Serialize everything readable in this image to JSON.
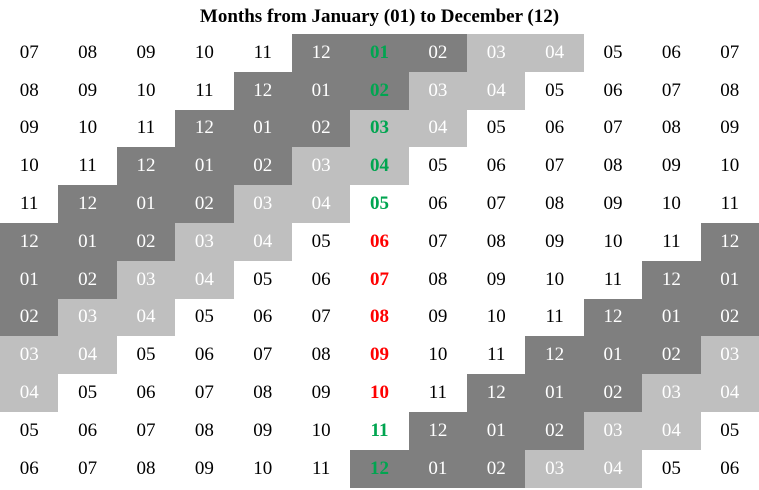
{
  "header": {
    "title": "Months from January (01) to December (12)"
  },
  "table": {
    "rows": [
      [
        "07",
        "08",
        "09",
        "10",
        "11",
        "12",
        "01",
        "02",
        "03",
        "04",
        "05",
        "06",
        "07"
      ],
      [
        "08",
        "09",
        "10",
        "11",
        "12",
        "01",
        "02",
        "03",
        "04",
        "05",
        "06",
        "07",
        "08"
      ],
      [
        "09",
        "10",
        "11",
        "12",
        "01",
        "02",
        "03",
        "04",
        "05",
        "06",
        "07",
        "08",
        "09"
      ],
      [
        "10",
        "11",
        "12",
        "01",
        "02",
        "03",
        "04",
        "05",
        "06",
        "07",
        "08",
        "09",
        "10"
      ],
      [
        "11",
        "12",
        "01",
        "02",
        "03",
        "04",
        "05",
        "06",
        "07",
        "08",
        "09",
        "10",
        "11"
      ],
      [
        "12",
        "01",
        "02",
        "03",
        "04",
        "05",
        "06",
        "07",
        "08",
        "09",
        "10",
        "11",
        "12"
      ],
      [
        "01",
        "02",
        "03",
        "04",
        "05",
        "06",
        "07",
        "08",
        "09",
        "10",
        "11",
        "12",
        "01"
      ],
      [
        "02",
        "03",
        "04",
        "05",
        "06",
        "07",
        "08",
        "09",
        "10",
        "11",
        "12",
        "01",
        "02"
      ],
      [
        "03",
        "04",
        "05",
        "06",
        "07",
        "08",
        "09",
        "10",
        "11",
        "12",
        "01",
        "02",
        "03"
      ],
      [
        "04",
        "05",
        "06",
        "07",
        "08",
        "09",
        "10",
        "11",
        "12",
        "01",
        "02",
        "03",
        "04"
      ],
      [
        "05",
        "06",
        "07",
        "08",
        "09",
        "10",
        "11",
        "12",
        "01",
        "02",
        "03",
        "04",
        "05"
      ],
      [
        "06",
        "07",
        "08",
        "09",
        "10",
        "11",
        "12",
        "01",
        "02",
        "03",
        "04",
        "05",
        "06"
      ]
    ],
    "fills": [
      [
        "#fff",
        "#fff",
        "#fff",
        "#fff",
        "#fff",
        "#7f7f7f",
        "#7f7f7f",
        "#7f7f7f",
        "#bfbfbf",
        "#bfbfbf",
        "#fff",
        "#fff",
        "#fff"
      ],
      [
        "#fff",
        "#fff",
        "#fff",
        "#fff",
        "#7f7f7f",
        "#7f7f7f",
        "#7f7f7f",
        "#bfbfbf",
        "#bfbfbf",
        "#fff",
        "#fff",
        "#fff",
        "#fff"
      ],
      [
        "#fff",
        "#fff",
        "#fff",
        "#7f7f7f",
        "#7f7f7f",
        "#7f7f7f",
        "#bfbfbf",
        "#bfbfbf",
        "#fff",
        "#fff",
        "#fff",
        "#fff",
        "#fff"
      ],
      [
        "#fff",
        "#fff",
        "#7f7f7f",
        "#7f7f7f",
        "#7f7f7f",
        "#bfbfbf",
        "#bfbfbf",
        "#fff",
        "#fff",
        "#fff",
        "#fff",
        "#fff",
        "#fff"
      ],
      [
        "#fff",
        "#7f7f7f",
        "#7f7f7f",
        "#7f7f7f",
        "#bfbfbf",
        "#bfbfbf",
        "#fff",
        "#fff",
        "#fff",
        "#fff",
        "#fff",
        "#fff",
        "#fff"
      ],
      [
        "#7f7f7f",
        "#7f7f7f",
        "#7f7f7f",
        "#bfbfbf",
        "#bfbfbf",
        "#fff",
        "#fff",
        "#fff",
        "#fff",
        "#fff",
        "#fff",
        "#fff",
        "#7f7f7f"
      ],
      [
        "#7f7f7f",
        "#7f7f7f",
        "#bfbfbf",
        "#bfbfbf",
        "#fff",
        "#fff",
        "#fff",
        "#fff",
        "#fff",
        "#fff",
        "#fff",
        "#7f7f7f",
        "#7f7f7f"
      ],
      [
        "#7f7f7f",
        "#bfbfbf",
        "#bfbfbf",
        "#fff",
        "#fff",
        "#fff",
        "#fff",
        "#fff",
        "#fff",
        "#fff",
        "#7f7f7f",
        "#7f7f7f",
        "#7f7f7f"
      ],
      [
        "#bfbfbf",
        "#bfbfbf",
        "#fff",
        "#fff",
        "#fff",
        "#fff",
        "#fff",
        "#fff",
        "#fff",
        "#7f7f7f",
        "#7f7f7f",
        "#7f7f7f",
        "#bfbfbf"
      ],
      [
        "#bfbfbf",
        "#fff",
        "#fff",
        "#fff",
        "#fff",
        "#fff",
        "#fff",
        "#fff",
        "#7f7f7f",
        "#7f7f7f",
        "#7f7f7f",
        "#bfbfbf",
        "#bfbfbf"
      ],
      [
        "#fff",
        "#fff",
        "#fff",
        "#fff",
        "#fff",
        "#fff",
        "#fff",
        "#7f7f7f",
        "#7f7f7f",
        "#7f7f7f",
        "#bfbfbf",
        "#bfbfbf",
        "#fff"
      ],
      [
        "#fff",
        "#fff",
        "#fff",
        "#fff",
        "#fff",
        "#fff",
        "#7f7f7f",
        "#7f7f7f",
        "#7f7f7f",
        "#bfbfbf",
        "#bfbfbf",
        "#fff",
        "#fff"
      ]
    ],
    "text_colors": [
      [
        "#000",
        "#000",
        "#000",
        "#000",
        "#000",
        "#fff",
        "#00a550",
        "#fff",
        "#fff",
        "#fff",
        "#000",
        "#000",
        "#000"
      ],
      [
        "#000",
        "#000",
        "#000",
        "#000",
        "#fff",
        "#fff",
        "#00a550",
        "#fff",
        "#fff",
        "#000",
        "#000",
        "#000",
        "#000"
      ],
      [
        "#000",
        "#000",
        "#000",
        "#fff",
        "#fff",
        "#fff",
        "#00a550",
        "#fff",
        "#000",
        "#000",
        "#000",
        "#000",
        "#000"
      ],
      [
        "#000",
        "#000",
        "#fff",
        "#fff",
        "#fff",
        "#fff",
        "#00a550",
        "#000",
        "#000",
        "#000",
        "#000",
        "#000",
        "#000"
      ],
      [
        "#000",
        "#fff",
        "#fff",
        "#fff",
        "#fff",
        "#fff",
        "#00a550",
        "#000",
        "#000",
        "#000",
        "#000",
        "#000",
        "#000"
      ],
      [
        "#fff",
        "#fff",
        "#fff",
        "#fff",
        "#fff",
        "#000",
        "#f00",
        "#000",
        "#000",
        "#000",
        "#000",
        "#000",
        "#fff"
      ],
      [
        "#fff",
        "#fff",
        "#fff",
        "#fff",
        "#000",
        "#000",
        "#f00",
        "#000",
        "#000",
        "#000",
        "#000",
        "#fff",
        "#fff"
      ],
      [
        "#fff",
        "#fff",
        "#fff",
        "#000",
        "#000",
        "#000",
        "#f00",
        "#000",
        "#000",
        "#000",
        "#fff",
        "#fff",
        "#fff"
      ],
      [
        "#fff",
        "#fff",
        "#000",
        "#000",
        "#000",
        "#000",
        "#f00",
        "#000",
        "#000",
        "#fff",
        "#fff",
        "#fff",
        "#fff"
      ],
      [
        "#fff",
        "#000",
        "#000",
        "#000",
        "#000",
        "#000",
        "#f00",
        "#000",
        "#fff",
        "#fff",
        "#fff",
        "#fff",
        "#fff"
      ],
      [
        "#000",
        "#000",
        "#000",
        "#000",
        "#000",
        "#000",
        "#00a550",
        "#fff",
        "#fff",
        "#fff",
        "#fff",
        "#fff",
        "#000"
      ],
      [
        "#000",
        "#000",
        "#000",
        "#000",
        "#000",
        "#000",
        "#00a550",
        "#fff",
        "#fff",
        "#fff",
        "#fff",
        "#000",
        "#000"
      ]
    ]
  }
}
